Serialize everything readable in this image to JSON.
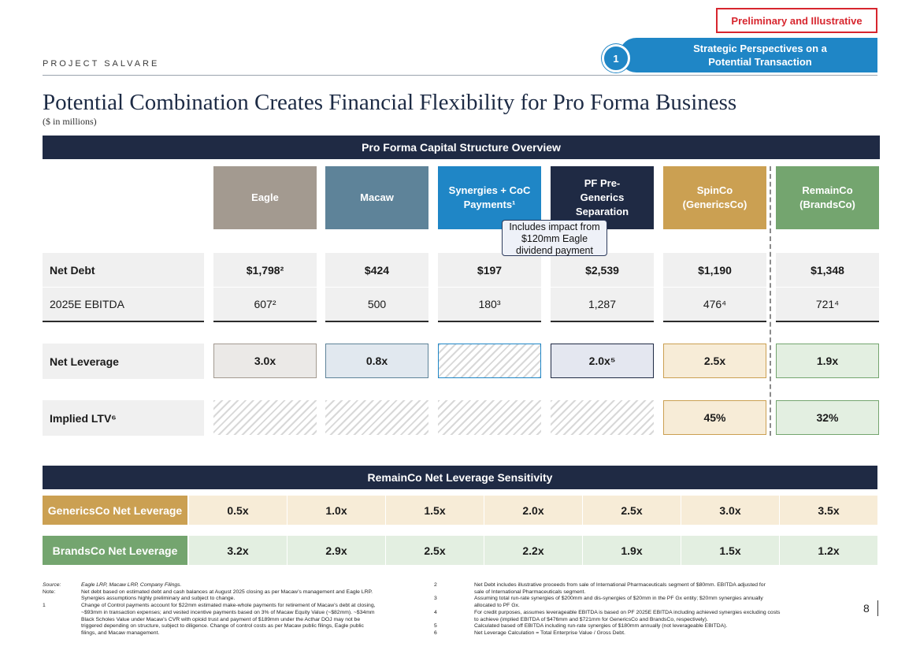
{
  "header": {
    "badge": "Preliminary and Illustrative",
    "project": "PROJECT SALVARE",
    "section_number": "1",
    "section_title": "Strategic Perspectives on a Potential Transaction"
  },
  "title": "Potential Combination Creates Financial Flexibility for Pro Forma Business",
  "subtitle": "($ in millions)",
  "capital_structure": {
    "heading": "Pro Forma Capital Structure Overview",
    "columns": [
      {
        "label": "Eagle",
        "color": "#a39a90"
      },
      {
        "label": "Macaw",
        "color": "#5e8399"
      },
      {
        "label": "Synergies + CoC Payments¹",
        "color": "#1f86c6"
      },
      {
        "label": "PF Pre-Generics Separation",
        "color": "#1f2a44"
      },
      {
        "label": "SpinCo (GenericsCo)",
        "color": "#cba052"
      },
      {
        "label": "RemainCo (BrandsCo)",
        "color": "#74a56f"
      }
    ],
    "callout": "Includes impact from $120mm Eagle dividend payment",
    "rows": {
      "net_debt": {
        "label": "Net Debt",
        "values": [
          "$1,798²",
          "$424",
          "$197",
          "$2,539",
          "$1,190",
          "$1,348"
        ]
      },
      "ebitda": {
        "label": "2025E EBITDA",
        "values": [
          "607²",
          "500",
          "180³",
          "1,287",
          "476⁴",
          "721⁴"
        ]
      },
      "net_leverage": {
        "label": "Net Leverage",
        "values": [
          "3.0x",
          "0.8x",
          "",
          "2.0x⁵",
          "2.5x",
          "1.9x"
        ]
      },
      "implied_ltv": {
        "label": "Implied LTV⁶",
        "values": [
          "",
          "",
          "",
          "",
          "45%",
          "32%"
        ]
      }
    }
  },
  "sensitivity": {
    "heading": "RemainCo Net Leverage Sensitivity",
    "generics": {
      "label": "GenericsCo Net Leverage",
      "color": "#cba052",
      "values": [
        "0.5x",
        "1.0x",
        "1.5x",
        "2.0x",
        "2.5x",
        "3.0x",
        "3.5x"
      ]
    },
    "brands": {
      "label": "BrandsCo Net Leverage",
      "color": "#74a56f",
      "values": [
        "3.2x",
        "2.9x",
        "2.5x",
        "2.2x",
        "1.9x",
        "1.5x",
        "1.2x"
      ]
    }
  },
  "footnotes": {
    "source_label": "Source:",
    "source_text": "Eagle LRP, Macaw LRP, Company Filings.",
    "note_label": "Note:",
    "note_lines": [
      "Net debt based on estimated debt and cash balances at August 2025 closing as per Macaw’s management and Eagle LRP.",
      "Synergies assumptions highly preliminary and subject to change."
    ],
    "fn1_num": "1",
    "fn1_lines": [
      "Change of Control payments account for $22mm estimated make-whole payments for retirement of Macaw’s debt at closing,",
      "~$93mm in transaction expenses; and vested incentive payments based on 3% of Macaw Equity Value (~$82mm). ~$34mm",
      "Black Scholes Value under Macaw’s CVR with opioid trust and payment of $189mm under the Acthar DOJ may not be",
      "triggered depending on structure, subject to diligence. Change of control costs as per Macaw public filings, Eagle public",
      "filings, and Macaw management."
    ],
    "right": [
      {
        "num": "2",
        "lines": [
          "Net Debt includes illustrative proceeds from sale of International Pharmaceuticals segment of $80mm. EBITDA adjusted for",
          "sale of International Pharmaceuticals segment."
        ]
      },
      {
        "num": "3",
        "lines": [
          "Assuming total run-rate synergies of $200mm and dis-synergies of $20mm in the PF Gx entity; $20mm synergies annually",
          "allocated to PF Gx."
        ]
      },
      {
        "num": "4",
        "lines": [
          "For credit purposes, assumes leverageable EBITDA is based on PF 2025E EBITDA including achieved synergies excluding costs",
          "to achieve (implied EBITDA of $476mm and $721mm for GenericsCo and BrandsCo, respectively)."
        ]
      },
      {
        "num": "5",
        "lines": [
          "Calculated based off EBITDA including run-rate synergies of $180mm annually (not leverageable EBITDA)."
        ]
      },
      {
        "num": "6",
        "lines": [
          "Net Leverage Calculation = Total Enterprise Value / Gross Debt."
        ]
      }
    ]
  },
  "page_number": "8"
}
